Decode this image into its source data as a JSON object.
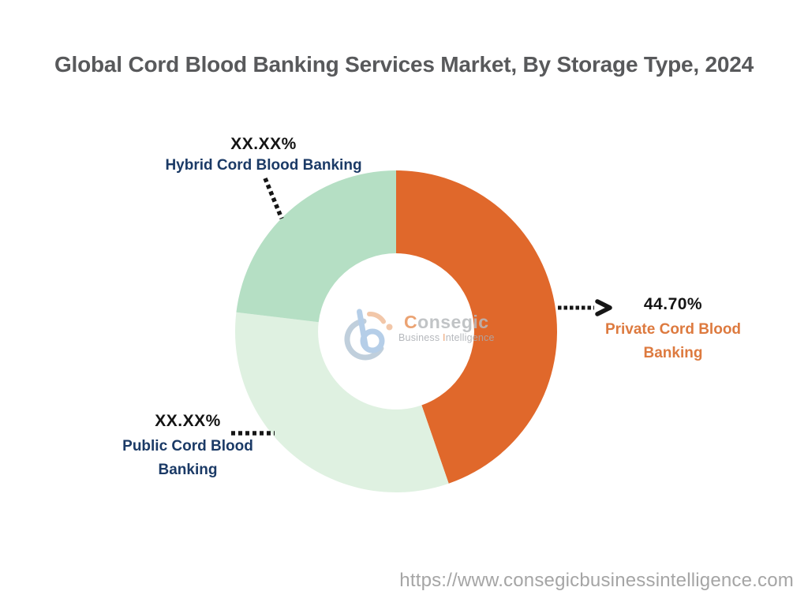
{
  "title": {
    "text": "Global Cord Blood Banking Services Market, By Storage Type, 2024"
  },
  "colors": {
    "title_gray": "#58595B",
    "navy": "#1B3A66",
    "orange_segment": "#E0682B",
    "orange_label": "#DD7A3F",
    "green_medium": "#B5DFC4",
    "green_light": "#DFF1E1",
    "leader_black": "#161616",
    "url_gray": "#A5A5A5"
  },
  "chart_data": {
    "type": "pie",
    "subtype": "donut",
    "title": "Global Cord Blood Banking Services Market, By Storage Type, 2024",
    "unit": "%",
    "inner_radius_ratio": 0.485,
    "start_angle_deg_clockwise_from_top": 0,
    "legend": "none (direct labels with dashed leader lines)",
    "segments": [
      {
        "name": "Private Cord Blood Banking",
        "display_value": "44.70%",
        "value": 44.7,
        "value_is_estimate": false,
        "color": "#E0682B",
        "label_text_color": "#DD7A3F"
      },
      {
        "name": "Public Cord Blood Banking",
        "display_value": "XX.XX%",
        "value": 32.2,
        "value_is_estimate": true,
        "color": "#DFF1E1",
        "label_text_color": "#1B3A66"
      },
      {
        "name": "Hybrid Cord Blood Banking",
        "display_value": "XX.XX%",
        "value": 23.1,
        "value_is_estimate": true,
        "color": "#B5DFC4",
        "label_text_color": "#1B3A66"
      }
    ]
  },
  "watermark": {
    "brand_initial": "C",
    "brand_rest": "onsegic",
    "tagline_pre": "Business ",
    "tagline_accent": "I",
    "tagline_rest": "ntelligence"
  },
  "footer": {
    "url": "https://www.consegicbusinessintelligence.com"
  }
}
